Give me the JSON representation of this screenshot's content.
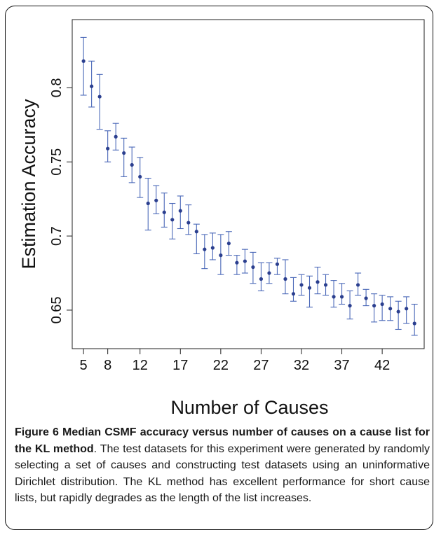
{
  "chart_data": {
    "type": "scatter",
    "title": "",
    "xlabel": "Number of Causes",
    "ylabel": "Estimation Accuracy",
    "xlim": [
      3.6,
      47.2
    ],
    "ylim": [
      0.624,
      0.846
    ],
    "xticks": [
      5,
      8,
      12,
      17,
      22,
      27,
      32,
      37,
      42
    ],
    "yticks": [
      0.65,
      0.7,
      0.75,
      0.8
    ],
    "ytick_labels": [
      "0.65",
      "0.7",
      "0.75",
      "0.8"
    ],
    "grid": false,
    "marker_color": "#2b3f8f",
    "errorbar_color": "#4a68b8",
    "points": [
      {
        "x": 5,
        "y": 0.818,
        "lo": 0.795,
        "hi": 0.834
      },
      {
        "x": 6,
        "y": 0.801,
        "lo": 0.787,
        "hi": 0.818
      },
      {
        "x": 7,
        "y": 0.794,
        "lo": 0.772,
        "hi": 0.809
      },
      {
        "x": 8,
        "y": 0.759,
        "lo": 0.75,
        "hi": 0.771
      },
      {
        "x": 9,
        "y": 0.767,
        "lo": 0.758,
        "hi": 0.776
      },
      {
        "x": 10,
        "y": 0.756,
        "lo": 0.74,
        "hi": 0.766
      },
      {
        "x": 11,
        "y": 0.748,
        "lo": 0.736,
        "hi": 0.76
      },
      {
        "x": 12,
        "y": 0.74,
        "lo": 0.726,
        "hi": 0.753
      },
      {
        "x": 13,
        "y": 0.722,
        "lo": 0.704,
        "hi": 0.739
      },
      {
        "x": 14,
        "y": 0.724,
        "lo": 0.715,
        "hi": 0.734
      },
      {
        "x": 15,
        "y": 0.716,
        "lo": 0.706,
        "hi": 0.729
      },
      {
        "x": 16,
        "y": 0.711,
        "lo": 0.698,
        "hi": 0.722
      },
      {
        "x": 17,
        "y": 0.717,
        "lo": 0.705,
        "hi": 0.727
      },
      {
        "x": 18,
        "y": 0.709,
        "lo": 0.701,
        "hi": 0.721
      },
      {
        "x": 19,
        "y": 0.703,
        "lo": 0.688,
        "hi": 0.708
      },
      {
        "x": 20,
        "y": 0.691,
        "lo": 0.678,
        "hi": 0.701
      },
      {
        "x": 21,
        "y": 0.692,
        "lo": 0.684,
        "hi": 0.702
      },
      {
        "x": 22,
        "y": 0.687,
        "lo": 0.674,
        "hi": 0.701
      },
      {
        "x": 23,
        "y": 0.695,
        "lo": 0.687,
        "hi": 0.703
      },
      {
        "x": 24,
        "y": 0.682,
        "lo": 0.674,
        "hi": 0.687
      },
      {
        "x": 25,
        "y": 0.683,
        "lo": 0.675,
        "hi": 0.691
      },
      {
        "x": 26,
        "y": 0.679,
        "lo": 0.668,
        "hi": 0.689
      },
      {
        "x": 27,
        "y": 0.671,
        "lo": 0.663,
        "hi": 0.682
      },
      {
        "x": 28,
        "y": 0.675,
        "lo": 0.668,
        "hi": 0.682
      },
      {
        "x": 29,
        "y": 0.681,
        "lo": 0.674,
        "hi": 0.685
      },
      {
        "x": 30,
        "y": 0.671,
        "lo": 0.661,
        "hi": 0.684
      },
      {
        "x": 31,
        "y": 0.661,
        "lo": 0.656,
        "hi": 0.672
      },
      {
        "x": 32,
        "y": 0.667,
        "lo": 0.66,
        "hi": 0.674
      },
      {
        "x": 33,
        "y": 0.665,
        "lo": 0.652,
        "hi": 0.673
      },
      {
        "x": 34,
        "y": 0.669,
        "lo": 0.661,
        "hi": 0.679
      },
      {
        "x": 35,
        "y": 0.667,
        "lo": 0.66,
        "hi": 0.674
      },
      {
        "x": 36,
        "y": 0.659,
        "lo": 0.652,
        "hi": 0.67
      },
      {
        "x": 37,
        "y": 0.659,
        "lo": 0.654,
        "hi": 0.668
      },
      {
        "x": 38,
        "y": 0.653,
        "lo": 0.644,
        "hi": 0.663
      },
      {
        "x": 39,
        "y": 0.667,
        "lo": 0.66,
        "hi": 0.675
      },
      {
        "x": 40,
        "y": 0.658,
        "lo": 0.653,
        "hi": 0.664
      },
      {
        "x": 41,
        "y": 0.653,
        "lo": 0.642,
        "hi": 0.661
      },
      {
        "x": 42,
        "y": 0.654,
        "lo": 0.643,
        "hi": 0.66
      },
      {
        "x": 43,
        "y": 0.651,
        "lo": 0.643,
        "hi": 0.659
      },
      {
        "x": 44,
        "y": 0.649,
        "lo": 0.637,
        "hi": 0.656
      },
      {
        "x": 45,
        "y": 0.651,
        "lo": 0.641,
        "hi": 0.659
      },
      {
        "x": 46,
        "y": 0.641,
        "lo": 0.633,
        "hi": 0.654
      }
    ]
  },
  "caption": {
    "bold": "Figure 6 Median CSMF accuracy versus number of causes on a cause list for the KL method",
    "text": ". The test datasets for this experiment were generated by randomly selecting a set of causes and constructing test datasets using an uninformative Dirichlet distribution. The KL method has excellent performance for short cause lists, but rapidly degrades as the length of the list increases."
  }
}
